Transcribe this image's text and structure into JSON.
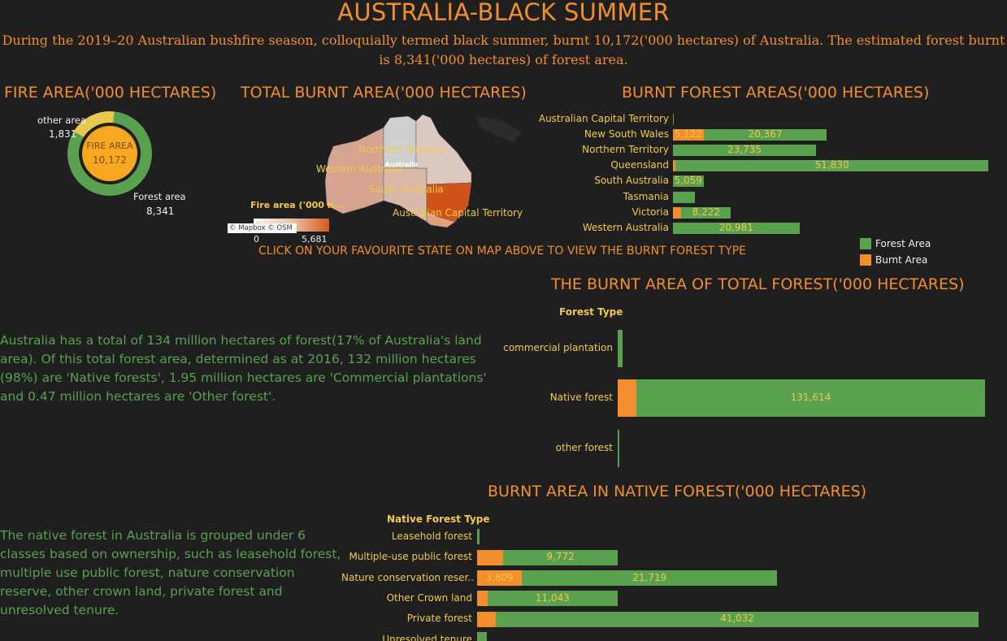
{
  "header": {
    "title": "AUSTRALIA-BLACK SUMMER",
    "subtitle": "During the 2019–20 Australian bushfire season, colloquially termed black summer, burnt 10,172('000 hectares) of Australia. The estimated forest burnt is 8,341('000 hectares) of forest area."
  },
  "fire_area": {
    "heading": "FIRE AREA('000 HECTARES)",
    "center_label": "FIRE AREA",
    "center_value": "10,172",
    "other_label": "other area",
    "other_value": "1,831",
    "forest_label": "Forest area",
    "forest_value": "8,341"
  },
  "map": {
    "heading": "TOTAL BURNT AREA('000 HECTARES)",
    "states": [
      "Northern Territory",
      "Western Australia",
      "South Australia",
      "Australian Capital Territory"
    ],
    "country_label": "Australia",
    "legend_title": "Fire area  ('000 h...",
    "legend_min": "0",
    "legend_max": "5,681",
    "attribution": "© Mapbox © OSM",
    "instruction": "CLICK ON YOUR FAVOURITE STATE ON MAP ABOVE TO VIEW THE BURNT FOREST TYPE"
  },
  "text": {
    "forest_para": "Australia has a total of 134 million hectares of forest(17% of Australia's land area). Of this total forest area, determined as at 2016, 132 million hectares (98%) are 'Native forests', 1.95 million hectares are 'Commercial plantations' and 0.47 million hectares are 'Other forest'.",
    "native_para": "The native forest in Australia is grouped under 6 classes based on ownership, such as leasehold forest, multiple use public forest, nature conservation reserve, other crown land, private forest and unresolved tenure."
  },
  "legend": {
    "forest": "Forest Area",
    "burnt": "Burnt Area"
  },
  "colors": {
    "forest": "#59a14f",
    "burnt": "#f28e2b",
    "label": "#f2c94c",
    "heading": "#f28e2b",
    "background": "#1f1f1f"
  },
  "chart_data": [
    {
      "id": "fire-area-donut",
      "type": "pie",
      "title": "FIRE AREA('000 HECTARES)",
      "categories": [
        "other area",
        "Forest area"
      ],
      "values": [
        1831,
        8341
      ],
      "total": 10172
    },
    {
      "id": "burnt-forest-areas",
      "type": "bar",
      "title": "BURNT FOREST AREAS('000 HECTARES)",
      "categories": [
        "Australian Capital Territory",
        "New South Wales",
        "Northern Territory",
        "Queensland",
        "South Australia",
        "Tasmania",
        "Victoria",
        "Western Australia"
      ],
      "series": [
        {
          "name": "Burnt Area",
          "values": [
            40,
            5122,
            0,
            450,
            0,
            0,
            1400,
            0
          ],
          "labels": [
            "",
            "5,122",
            "",
            "",
            "",
            "",
            "",
            ""
          ]
        },
        {
          "name": "Forest Area",
          "values": [
            120,
            20367,
            23735,
            51830,
            5059,
            3600,
            8222,
            20981
          ],
          "labels": [
            "",
            "20,367",
            "23,735",
            "51,830",
            "5,059",
            "",
            "8,222",
            "20,981"
          ]
        }
      ],
      "stacked": true,
      "xlim": [
        0,
        52280
      ]
    },
    {
      "id": "burnt-total-forest",
      "type": "bar",
      "title": "THE BURNT AREA OF TOTAL FOREST('000 HECTARES)",
      "axis_title": "Forest Type",
      "categories": [
        "commercial plantation",
        "Native forest",
        "other forest"
      ],
      "series": [
        {
          "name": "Burnt Area",
          "values": [
            0,
            7000,
            0
          ],
          "labels": [
            "",
            "",
            ""
          ]
        },
        {
          "name": "Forest Area",
          "values": [
            1950,
            131614,
            470
          ],
          "labels": [
            "",
            "131,614",
            ""
          ]
        }
      ],
      "stacked": true,
      "xlim": [
        0,
        138614
      ]
    },
    {
      "id": "burnt-native-forest",
      "type": "bar",
      "title": "BURNT AREA IN NATIVE FOREST('000 HECTARES)",
      "axis_title": "Native Forest Type",
      "categories": [
        "Leasehold forest",
        "Multiple-use public forest",
        "Nature conservation reser..",
        "Other Crown land",
        "Private forest",
        "Unresolved tenure"
      ],
      "series": [
        {
          "name": "Burnt Area",
          "values": [
            0,
            2200,
            3809,
            900,
            1600,
            0
          ],
          "labels": [
            "",
            "",
            "3,809",
            "",
            "",
            ""
          ]
        },
        {
          "name": "Forest Area",
          "values": [
            200,
            9772,
            21719,
            11043,
            41032,
            800
          ],
          "labels": [
            "",
            "9,772",
            "21,719",
            "11,043",
            "41,032",
            ""
          ]
        }
      ],
      "stacked": true,
      "xlim": [
        0,
        42632
      ]
    }
  ]
}
